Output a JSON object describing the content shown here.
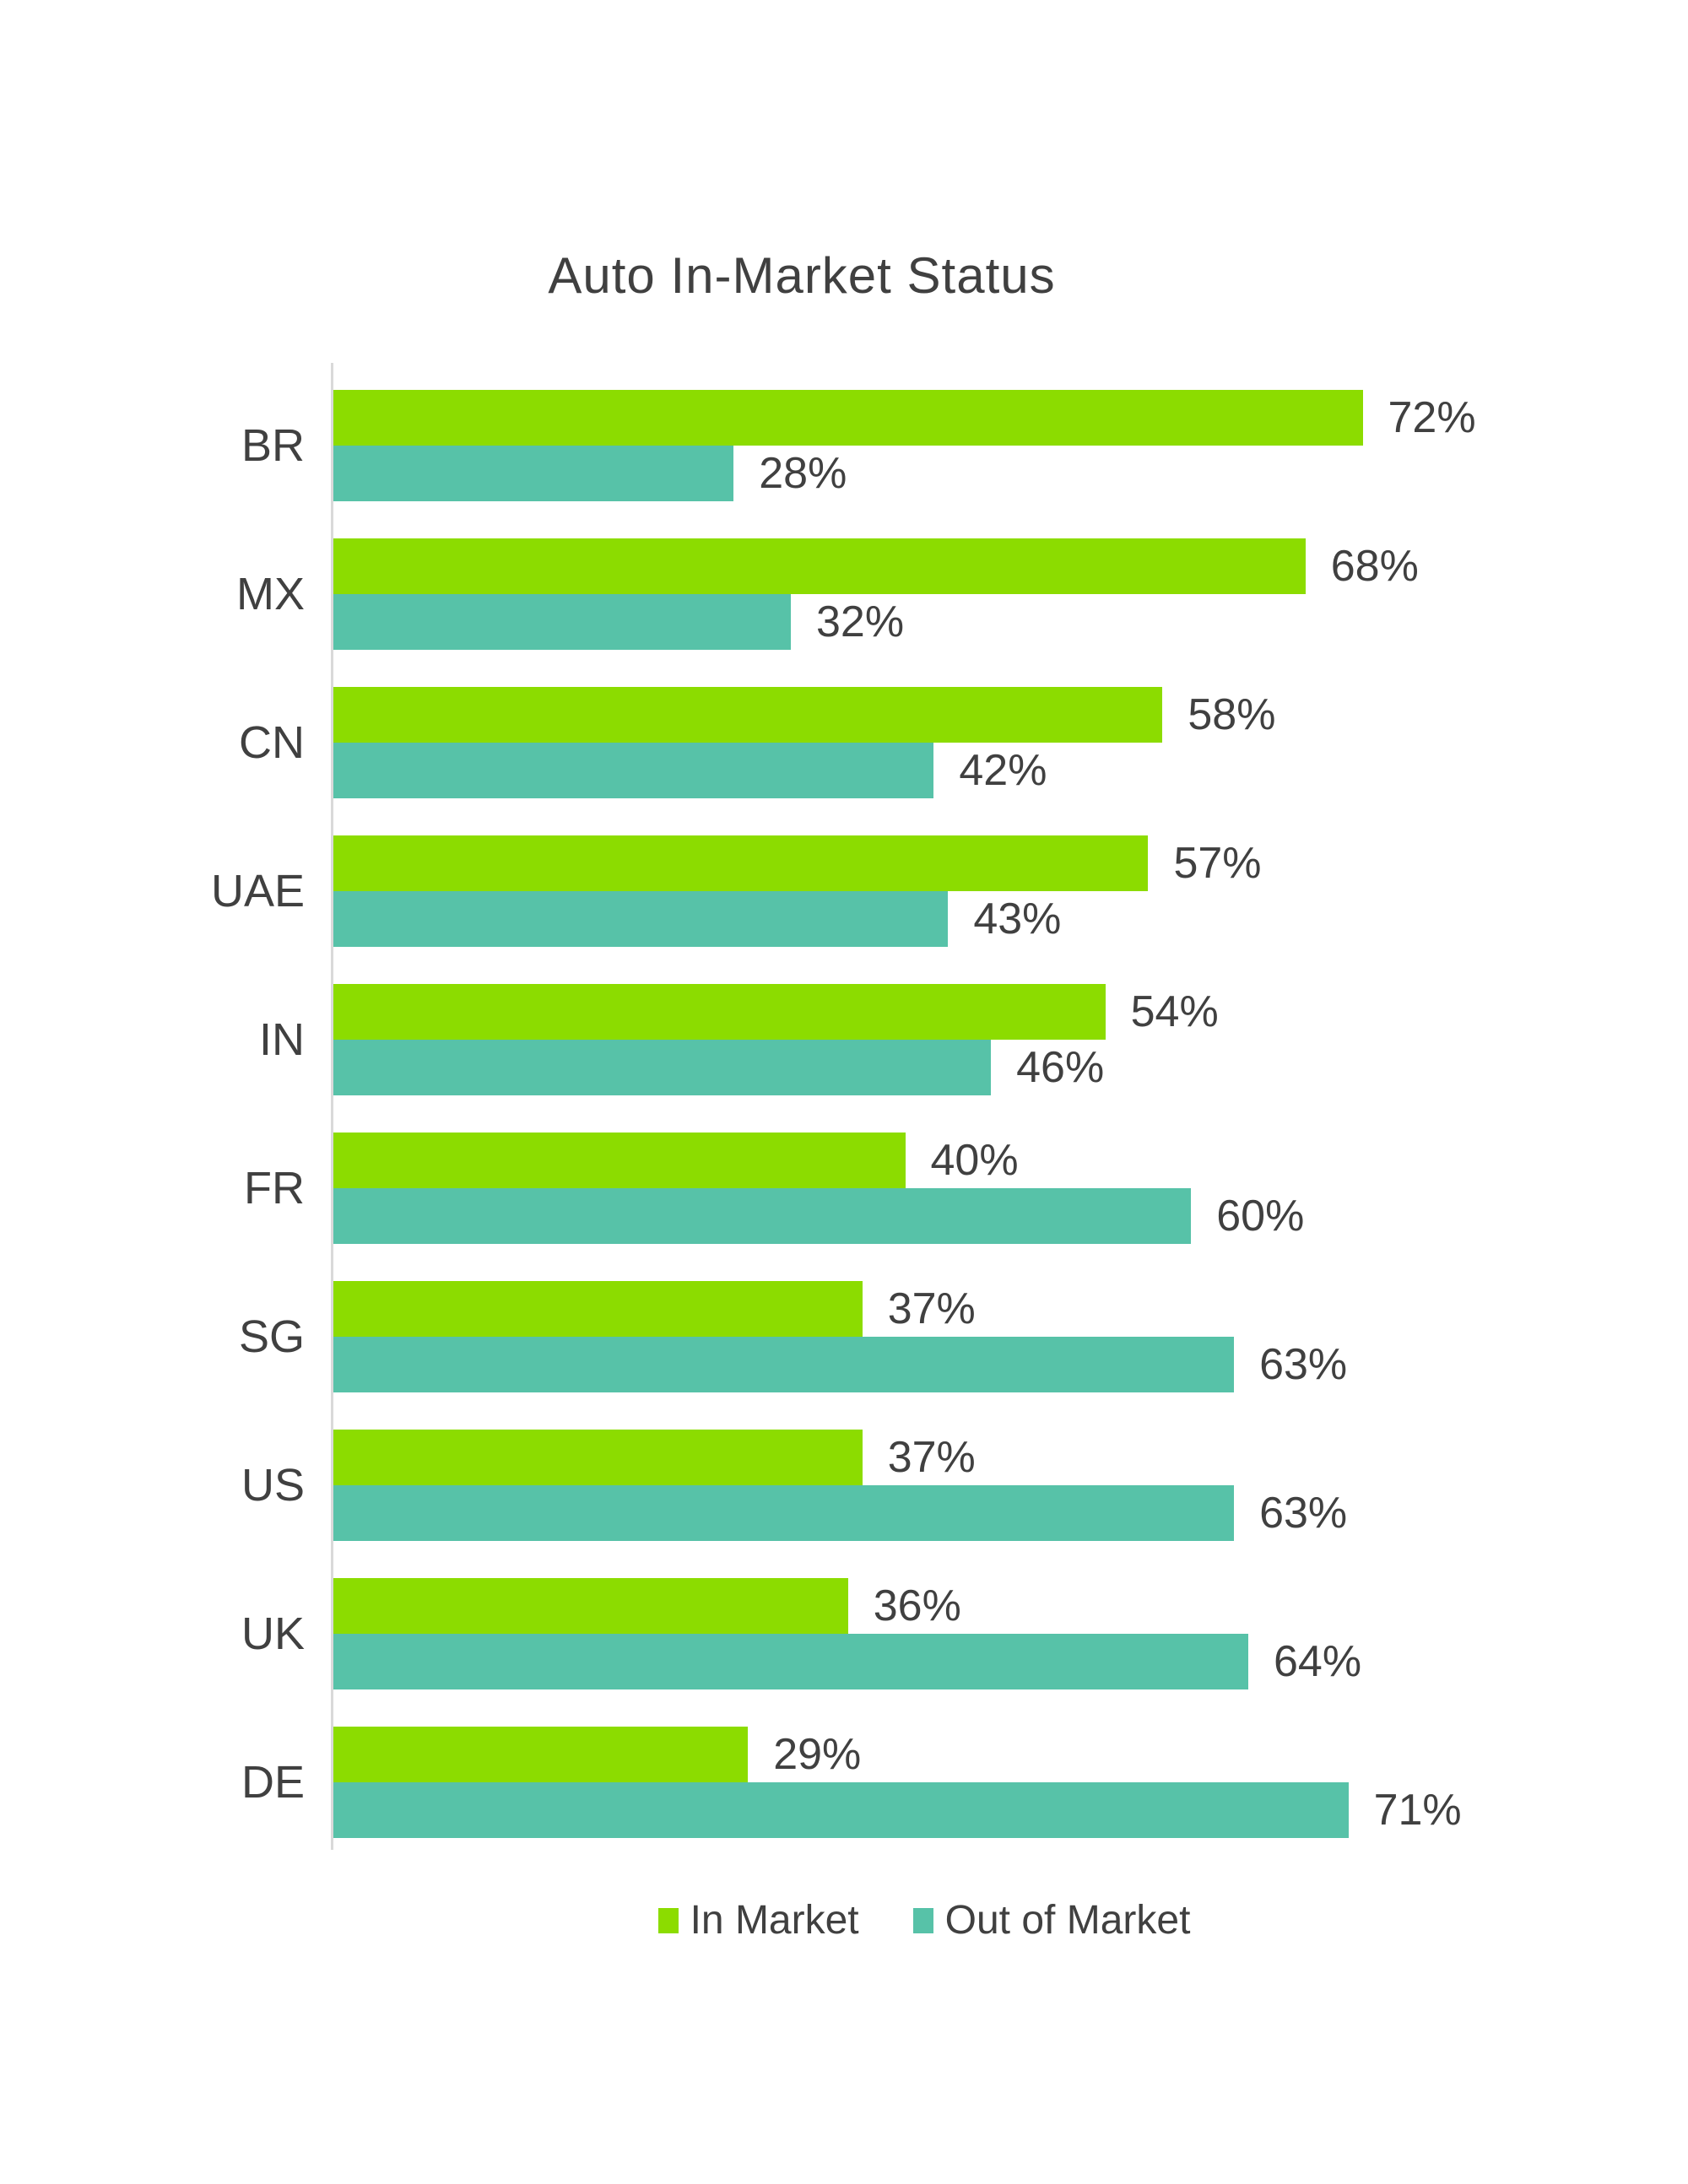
{
  "chart_data": {
    "type": "bar",
    "orientation": "horizontal",
    "title": "Auto In-Market Status",
    "categories": [
      "BR",
      "MX",
      "CN",
      "UAE",
      "IN",
      "FR",
      "SG",
      "US",
      "UK",
      "DE"
    ],
    "series": [
      {
        "name": "In Market",
        "color": "#8CDC00",
        "values": [
          72,
          68,
          58,
          57,
          54,
          40,
          37,
          37,
          36,
          29
        ]
      },
      {
        "name": "Out of Market",
        "color": "#57C2A8",
        "values": [
          28,
          32,
          42,
          43,
          46,
          60,
          63,
          63,
          64,
          71
        ]
      }
    ],
    "value_suffix": "%",
    "xlim": [
      0,
      80
    ],
    "grid": false,
    "data_labels": true,
    "legend_position": "bottom",
    "xlabel": "",
    "ylabel": ""
  },
  "style": {
    "text_color": "#404040",
    "axis_line_color": "#D9D9D9",
    "background": "#FFFFFF"
  }
}
